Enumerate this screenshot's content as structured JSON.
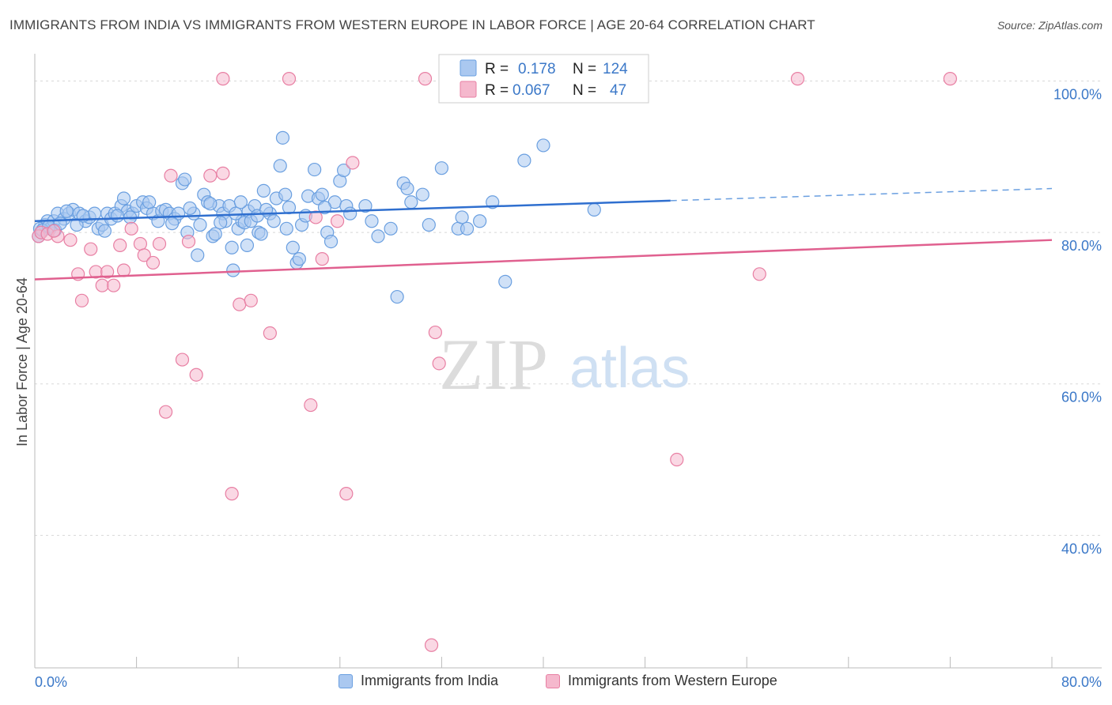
{
  "title": "IMMIGRANTS FROM INDIA VS IMMIGRANTS FROM WESTERN EUROPE IN LABOR FORCE | AGE 20-64 CORRELATION CHART",
  "source": "Source: ZipAtlas.com",
  "watermark": {
    "zip": "ZIP",
    "atlas": "atlas"
  },
  "chart_data": {
    "type": "scatter",
    "ylabel": "In Labor Force | Age 20-64",
    "xlabel": "",
    "xlim": [
      0,
      80
    ],
    "ylim": [
      20,
      103
    ],
    "x_tick_labels": {
      "min": "0.0%",
      "max": "80.0%"
    },
    "y_ticks": [
      {
        "value": 100,
        "label": "100.0%"
      },
      {
        "value": 80,
        "label": "80.0%"
      },
      {
        "value": 60,
        "label": "60.0%"
      },
      {
        "value": 40,
        "label": "40.0%"
      }
    ],
    "legend": [
      {
        "name": "India",
        "r_label": "R =",
        "r_value": "0.178",
        "n_label": "N =",
        "n_value": "124"
      },
      {
        "name": "Western Europe",
        "r_label": "R =",
        "r_value": "0.067",
        "n_label": "N =",
        "n_value": "47"
      }
    ],
    "series": [
      {
        "name": "Immigrants from India",
        "color": "#6a9fe0",
        "fill": "#aac8f0",
        "trend": {
          "x0": 0,
          "y0": 81.5,
          "x1": 50,
          "y1": 84.2,
          "dash_to_x": 80,
          "dash_to_y": 85.8
        },
        "points": [
          [
            0.3,
            79.5
          ],
          [
            0.5,
            80
          ],
          [
            0.8,
            81
          ],
          [
            1,
            81.5
          ],
          [
            1.2,
            80.5
          ],
          [
            1.5,
            81.5
          ],
          [
            1.8,
            82.5
          ],
          [
            2.3,
            81.8
          ],
          [
            2.7,
            82.5
          ],
          [
            3,
            83
          ],
          [
            3.5,
            82.5
          ],
          [
            4,
            81.5
          ],
          [
            4.3,
            82
          ],
          [
            4.7,
            82.5
          ],
          [
            5,
            80.5
          ],
          [
            5.3,
            81
          ],
          [
            5.7,
            82.5
          ],
          [
            6,
            81.8
          ],
          [
            6.3,
            82.5
          ],
          [
            6.8,
            83.5
          ],
          [
            7,
            84.5
          ],
          [
            7.3,
            82.8
          ],
          [
            7.7,
            82.5
          ],
          [
            8,
            83.5
          ],
          [
            8.5,
            84
          ],
          [
            8.8,
            83.2
          ],
          [
            9.3,
            82.5
          ],
          [
            9.7,
            81.5
          ],
          [
            10,
            82.8
          ],
          [
            10.3,
            83
          ],
          [
            10.6,
            82.5
          ],
          [
            11,
            81.8
          ],
          [
            11.3,
            82.5
          ],
          [
            11.6,
            86.5
          ],
          [
            11.8,
            87
          ],
          [
            12,
            80
          ],
          [
            12.5,
            82.5
          ],
          [
            12.8,
            77
          ],
          [
            13,
            81
          ],
          [
            13.3,
            85
          ],
          [
            13.6,
            84
          ],
          [
            14,
            79.5
          ],
          [
            14.2,
            79.8
          ],
          [
            14.5,
            83.5
          ],
          [
            14.8,
            82.5
          ],
          [
            15,
            81.5
          ],
          [
            15.3,
            83.5
          ],
          [
            15.5,
            78
          ],
          [
            15.6,
            75
          ],
          [
            16,
            80.5
          ],
          [
            16.3,
            81.5
          ],
          [
            16.5,
            81.3
          ],
          [
            16.7,
            78.3
          ],
          [
            16.8,
            82.8
          ],
          [
            17,
            81.5
          ],
          [
            17.3,
            83.5
          ],
          [
            17.6,
            80
          ],
          [
            17.8,
            79.8
          ],
          [
            18,
            85.5
          ],
          [
            18.5,
            82.5
          ],
          [
            18.8,
            81.5
          ],
          [
            19,
            84.5
          ],
          [
            19.3,
            88.8
          ],
          [
            19.5,
            92.5
          ],
          [
            19.7,
            85
          ],
          [
            20,
            83.3
          ],
          [
            20.3,
            78
          ],
          [
            20.6,
            76
          ],
          [
            20.8,
            76.5
          ],
          [
            21,
            81
          ],
          [
            21.5,
            84.8
          ],
          [
            22,
            88.3
          ],
          [
            22.3,
            84.5
          ],
          [
            22.6,
            85
          ],
          [
            23,
            80
          ],
          [
            23.3,
            78.8
          ],
          [
            23.6,
            84
          ],
          [
            24,
            86.8
          ],
          [
            24.3,
            88.2
          ],
          [
            24.5,
            83.5
          ],
          [
            26,
            83.5
          ],
          [
            27,
            79.5
          ],
          [
            28,
            80.5
          ],
          [
            28.5,
            71.5
          ],
          [
            29,
            86.5
          ],
          [
            29.3,
            85.8
          ],
          [
            29.6,
            84
          ],
          [
            31,
            81
          ],
          [
            32,
            88.5
          ],
          [
            33.3,
            80.5
          ],
          [
            33.6,
            82
          ],
          [
            34,
            80.5
          ],
          [
            35,
            81.5
          ],
          [
            36,
            84
          ],
          [
            37,
            73.5
          ],
          [
            38.5,
            89.5
          ],
          [
            40,
            91.5
          ],
          [
            44,
            83
          ],
          [
            0.4,
            80.5
          ],
          [
            0.6,
            80.3
          ],
          [
            1.1,
            80.8
          ],
          [
            1.6,
            80.3
          ],
          [
            2,
            81.2
          ],
          [
            2.5,
            82.8
          ],
          [
            3.3,
            81
          ],
          [
            3.8,
            82.2
          ],
          [
            5.5,
            80.2
          ],
          [
            6.5,
            82.2
          ],
          [
            7.5,
            82
          ],
          [
            9,
            84
          ],
          [
            10.8,
            81.2
          ],
          [
            12.2,
            83.2
          ],
          [
            13.8,
            83.8
          ],
          [
            14.6,
            81.3
          ],
          [
            15.8,
            82.5
          ],
          [
            16.2,
            84
          ],
          [
            17.5,
            82.2
          ],
          [
            18.2,
            83
          ],
          [
            19.8,
            80.5
          ],
          [
            21.3,
            82.2
          ],
          [
            22.8,
            83.3
          ],
          [
            24.8,
            82.5
          ],
          [
            26.5,
            81.5
          ],
          [
            30.5,
            85
          ]
        ]
      },
      {
        "name": "Immigrants from Western Europe",
        "color": "#e87fa3",
        "fill": "#f5b8cd",
        "trend": {
          "x0": 0,
          "y0": 73.8,
          "x1": 80,
          "y1": 79
        },
        "points": [
          [
            0.3,
            79.5
          ],
          [
            0.5,
            80
          ],
          [
            1,
            79.8
          ],
          [
            1.8,
            79.5
          ],
          [
            2.8,
            79
          ],
          [
            3.4,
            74.5
          ],
          [
            3.7,
            71
          ],
          [
            4.4,
            77.8
          ],
          [
            4.8,
            74.8
          ],
          [
            5.3,
            73
          ],
          [
            5.7,
            74.8
          ],
          [
            6.2,
            73
          ],
          [
            6.7,
            78.3
          ],
          [
            7,
            75
          ],
          [
            7.6,
            80.5
          ],
          [
            8.3,
            78.5
          ],
          [
            8.6,
            77
          ],
          [
            9.3,
            76
          ],
          [
            9.8,
            78.5
          ],
          [
            10.3,
            56.3
          ],
          [
            10.7,
            87.5
          ],
          [
            11.6,
            63.2
          ],
          [
            12.1,
            78.8
          ],
          [
            12.7,
            61.2
          ],
          [
            13.8,
            87.5
          ],
          [
            14.8,
            87.8
          ],
          [
            15.5,
            45.5
          ],
          [
            16.1,
            70.5
          ],
          [
            17,
            71
          ],
          [
            18.5,
            66.7
          ],
          [
            20,
            100.3
          ],
          [
            21.7,
            57.2
          ],
          [
            22.1,
            82
          ],
          [
            22.6,
            76.5
          ],
          [
            23.8,
            81.5
          ],
          [
            24.5,
            45.5
          ],
          [
            25,
            89.2
          ],
          [
            30.7,
            100.3
          ],
          [
            31.5,
            66.8
          ],
          [
            31.8,
            62.7
          ],
          [
            31.2,
            25.5
          ],
          [
            50.5,
            50
          ],
          [
            57,
            74.5
          ],
          [
            60,
            100.3
          ],
          [
            72,
            100.3
          ],
          [
            14.8,
            100.3
          ],
          [
            1.5,
            80.2
          ]
        ]
      }
    ]
  }
}
